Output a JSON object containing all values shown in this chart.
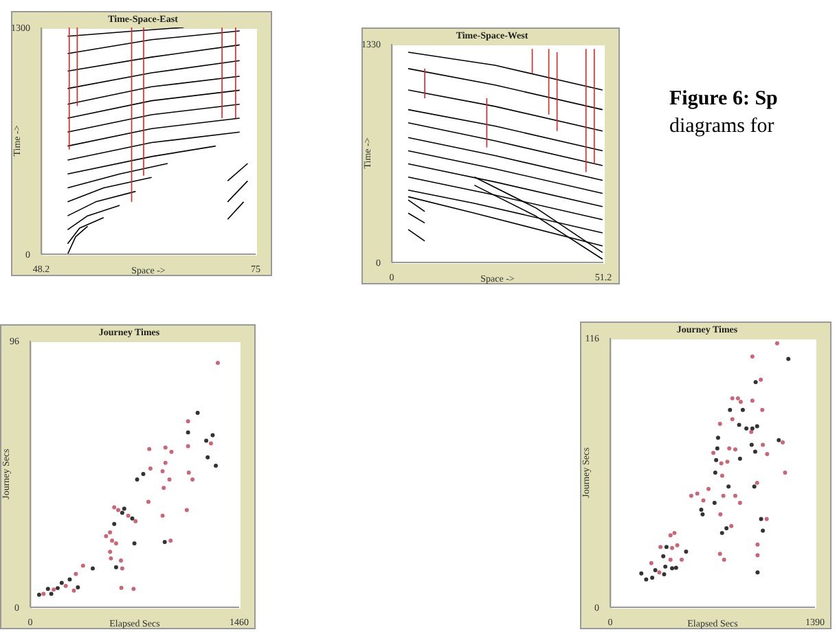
{
  "chart_data": [
    {
      "type": "line",
      "title": "Time-Space-East",
      "xlabel": "Space ->",
      "ylabel": "Time ->",
      "xlim": [
        48.2,
        75
      ],
      "xticks": [
        48.2,
        75
      ],
      "ylim": [
        0,
        1300
      ],
      "yticks": [
        0,
        1300
      ],
      "series": [
        {
          "color": "#000000",
          "x": [
            51.5,
            60,
            66
          ],
          "values": [
            1250,
            1280,
            1300
          ]
        },
        {
          "color": "#000000",
          "x": [
            51.5,
            62,
            73
          ],
          "values": [
            1150,
            1230,
            1280
          ]
        },
        {
          "color": "#000000",
          "x": [
            51.5,
            62,
            73
          ],
          "values": [
            1050,
            1130,
            1200
          ]
        },
        {
          "color": "#000000",
          "x": [
            51.5,
            62,
            73
          ],
          "values": [
            950,
            1040,
            1110
          ]
        },
        {
          "color": "#000000",
          "x": [
            51.5,
            62,
            73
          ],
          "values": [
            860,
            960,
            1020
          ]
        },
        {
          "color": "#000000",
          "x": [
            51.5,
            62,
            73
          ],
          "values": [
            780,
            880,
            940
          ]
        },
        {
          "color": "#000000",
          "x": [
            51.5,
            62,
            73
          ],
          "values": [
            700,
            800,
            860
          ]
        },
        {
          "color": "#000000",
          "x": [
            51.5,
            62,
            73
          ],
          "values": [
            620,
            720,
            780
          ]
        },
        {
          "color": "#000000",
          "x": [
            51.5,
            62,
            73
          ],
          "values": [
            540,
            640,
            700
          ]
        },
        {
          "color": "#000000",
          "x": [
            51.5,
            62,
            70
          ],
          "values": [
            460,
            560,
            620
          ]
        },
        {
          "color": "#000000",
          "x": [
            51.5,
            58,
            64
          ],
          "values": [
            380,
            460,
            520
          ]
        },
        {
          "color": "#000000",
          "x": [
            51.5,
            56,
            62
          ],
          "values": [
            300,
            380,
            440
          ]
        },
        {
          "color": "#000000",
          "x": [
            51.5,
            55,
            60
          ],
          "values": [
            220,
            300,
            360
          ]
        },
        {
          "color": "#000000",
          "x": [
            51.5,
            54,
            58
          ],
          "values": [
            140,
            220,
            280
          ]
        },
        {
          "color": "#000000",
          "x": [
            51.5,
            53,
            56
          ],
          "values": [
            60,
            150,
            210
          ]
        },
        {
          "color": "#000000",
          "x": [
            51.5,
            52.5,
            54
          ],
          "values": [
            0,
            100,
            160
          ]
        },
        {
          "color": "#000000",
          "x": [
            71.5,
            74
          ],
          "values": [
            420,
            520
          ]
        },
        {
          "color": "#000000",
          "x": [
            71.5,
            74
          ],
          "values": [
            300,
            420
          ]
        },
        {
          "color": "#000000",
          "x": [
            71.5,
            73.5
          ],
          "values": [
            200,
            300
          ]
        },
        {
          "color": "#dd2222",
          "x": [
            51.7,
            51.7
          ],
          "values": [
            600,
            1300
          ]
        },
        {
          "color": "#dd2222",
          "x": [
            52.7,
            52.7
          ],
          "values": [
            850,
            1300
          ]
        },
        {
          "color": "#dd2222",
          "x": [
            59.5,
            59.5
          ],
          "values": [
            300,
            1300
          ]
        },
        {
          "color": "#dd2222",
          "x": [
            61,
            61
          ],
          "values": [
            450,
            1300
          ]
        },
        {
          "color": "#dd2222",
          "x": [
            70.8,
            70.8
          ],
          "values": [
            780,
            1300
          ]
        },
        {
          "color": "#dd2222",
          "x": [
            72.5,
            72.5
          ],
          "values": [
            780,
            1300
          ]
        }
      ]
    },
    {
      "type": "line",
      "title": "Time-Space-West",
      "xlabel": "Space ->",
      "ylabel": "Time ->",
      "annotations": [
        "Figure 6: Sp",
        "diagrams for"
      ],
      "xlim": [
        0,
        51.2
      ],
      "xticks": [
        0,
        51.2
      ],
      "ylim": [
        0,
        1330
      ],
      "yticks": [
        0,
        1330
      ],
      "series": [
        {
          "color": "#000000",
          "x": [
            4,
            25,
            51
          ],
          "values": [
            1280,
            1200,
            1050
          ]
        },
        {
          "color": "#000000",
          "x": [
            4,
            25,
            51
          ],
          "values": [
            1180,
            1080,
            930
          ]
        },
        {
          "color": "#000000",
          "x": [
            4,
            25,
            51
          ],
          "values": [
            1050,
            950,
            800
          ]
        },
        {
          "color": "#000000",
          "x": [
            4,
            25,
            51
          ],
          "values": [
            930,
            830,
            680
          ]
        },
        {
          "color": "#000000",
          "x": [
            4,
            25,
            51
          ],
          "values": [
            850,
            740,
            590
          ]
        },
        {
          "color": "#000000",
          "x": [
            4,
            25,
            51
          ],
          "values": [
            760,
            650,
            500
          ]
        },
        {
          "color": "#000000",
          "x": [
            4,
            25,
            51
          ],
          "values": [
            680,
            570,
            420
          ]
        },
        {
          "color": "#000000",
          "x": [
            4,
            25,
            51
          ],
          "values": [
            600,
            490,
            340
          ]
        },
        {
          "color": "#000000",
          "x": [
            4,
            25,
            51
          ],
          "values": [
            520,
            410,
            260
          ]
        },
        {
          "color": "#000000",
          "x": [
            4,
            20,
            51
          ],
          "values": [
            440,
            360,
            180
          ]
        },
        {
          "color": "#000000",
          "x": [
            4,
            20,
            51
          ],
          "values": [
            400,
            300,
            100
          ]
        },
        {
          "color": "#000000",
          "x": [
            20,
            35,
            51
          ],
          "values": [
            520,
            330,
            60
          ]
        },
        {
          "color": "#000000",
          "x": [
            20,
            35,
            51
          ],
          "values": [
            470,
            280,
            20
          ]
        },
        {
          "color": "#000000",
          "x": [
            4,
            8
          ],
          "values": [
            380,
            310
          ]
        },
        {
          "color": "#000000",
          "x": [
            4,
            8
          ],
          "values": [
            300,
            240
          ]
        },
        {
          "color": "#000000",
          "x": [
            4,
            8
          ],
          "values": [
            200,
            130
          ]
        },
        {
          "color": "#dd2222",
          "x": [
            8,
            8
          ],
          "values": [
            1000,
            1180
          ]
        },
        {
          "color": "#dd2222",
          "x": [
            23,
            23
          ],
          "values": [
            700,
            1000
          ]
        },
        {
          "color": "#dd2222",
          "x": [
            34,
            34
          ],
          "values": [
            1150,
            1300
          ]
        },
        {
          "color": "#dd2222",
          "x": [
            38,
            38
          ],
          "values": [
            900,
            1300
          ]
        },
        {
          "color": "#dd2222",
          "x": [
            40,
            40
          ],
          "values": [
            800,
            1280
          ]
        },
        {
          "color": "#dd2222",
          "x": [
            47,
            47
          ],
          "values": [
            550,
            1300
          ]
        },
        {
          "color": "#dd2222",
          "x": [
            49,
            49
          ],
          "values": [
            600,
            1300
          ]
        }
      ]
    },
    {
      "type": "scatter",
      "title": "Journey Times",
      "xlabel": "Elapsed Secs",
      "ylabel": "Journey Secs",
      "marker": "circle",
      "xlim": [
        0,
        1460
      ],
      "xticks": [
        0,
        1460
      ],
      "ylim": [
        0,
        96
      ],
      "yticks": [
        0,
        96
      ],
      "series": [
        {
          "color": "#cc6677",
          "x": [
            1311,
            1103,
            1103,
            1263,
            832,
            945,
            987,
            945,
            925,
            840,
            1108,
            1134,
            973,
            933,
            826,
            1094,
            925,
            587,
            615,
            685,
            736,
            530,
            558,
            572,
            600,
            981,
            558,
            564,
            634,
            643,
            369,
            319,
            248,
            164,
            93,
            305,
            637,
            722
          ],
          "values": [
            88,
            67,
            58,
            59,
            57,
            57.5,
            56,
            52,
            49,
            50,
            48.5,
            46,
            46,
            43,
            38,
            35,
            33,
            36,
            35,
            33,
            31,
            25.6,
            27,
            24,
            23,
            24,
            20,
            17.6,
            16.8,
            14,
            15,
            12,
            7.7,
            6.4,
            4.8,
            6,
            7,
            6.6
          ]
        },
        {
          "color": "#333333",
          "x": [
            1170,
            1275,
            1103,
            1230,
            1240,
            1297,
            790,
            747,
            643,
            713,
            657,
            587,
            728,
            940,
            600,
            437,
            276,
            220,
            192,
            124,
            62,
            333,
            147
          ],
          "values": [
            70,
            62,
            63,
            60,
            54,
            51,
            48,
            46,
            34,
            32,
            35.5,
            30,
            23,
            23.5,
            14.4,
            14,
            10,
            8.8,
            6.9,
            6.6,
            4.5,
            7.2,
            4.8
          ]
        }
      ]
    },
    {
      "type": "scatter",
      "title": "Journey Times",
      "xlabel": "Elapsed Secs",
      "ylabel": "Journey Secs",
      "marker": "circle",
      "xlim": [
        0,
        1390
      ],
      "xticks": [
        0,
        1390
      ],
      "ylim": [
        0,
        116
      ],
      "yticks": [
        0,
        116
      ],
      "series": [
        {
          "color": "#cc6677",
          "x": [
            1133,
            965,
            1022,
            829,
            867,
            886,
            965,
            1032,
            745,
            829,
            957,
            1036,
            1171,
            808,
            849,
            1065,
            700,
            754,
            795,
            1187,
            760,
            849,
            550,
            591,
            667,
            632,
            768,
            881,
            997,
            748,
            822,
            1062,
            1000,
            1000,
            745,
            773,
            409,
            436,
            420,
            455,
            341,
            409,
            485,
            279,
            333
          ],
          "values": [
            113.7,
            108,
            98,
            90,
            90,
            88.5,
            89,
            85,
            79,
            81,
            75.5,
            70,
            71,
            68.4,
            68,
            66,
            66.5,
            62,
            62.7,
            58,
            56.7,
            48,
            48,
            49,
            51,
            46,
            48,
            45,
            53.6,
            40,
            35,
            38,
            27,
            22.4,
            23,
            20.5,
            31,
            32,
            25.5,
            26.7,
            26,
            20.5,
            20.5,
            19,
            15
          ]
        },
        {
          "color": "#333333",
          "x": [
            1209,
            987,
            813,
            900,
            875,
            924,
            965,
            997,
            732,
            960,
            1144,
            727,
            984,
            881,
            719,
            713,
            803,
            708,
            618,
            627,
            978,
            789,
            759,
            1024,
            1036,
            1000,
            382,
            360,
            515,
            306,
            374,
            420,
            447,
            211,
            244,
            285,
            366
          ],
          "values": [
            107,
            97,
            85,
            85,
            78.6,
            77,
            77,
            78,
            73,
            70,
            72,
            68.4,
            67,
            64,
            63.4,
            58,
            52,
            45,
            42,
            40,
            52,
            34,
            32,
            38,
            33,
            15,
            26,
            22,
            24,
            16,
            17.5,
            16.8,
            17,
            14.6,
            12,
            12.7,
            14.2
          ]
        }
      ]
    }
  ]
}
